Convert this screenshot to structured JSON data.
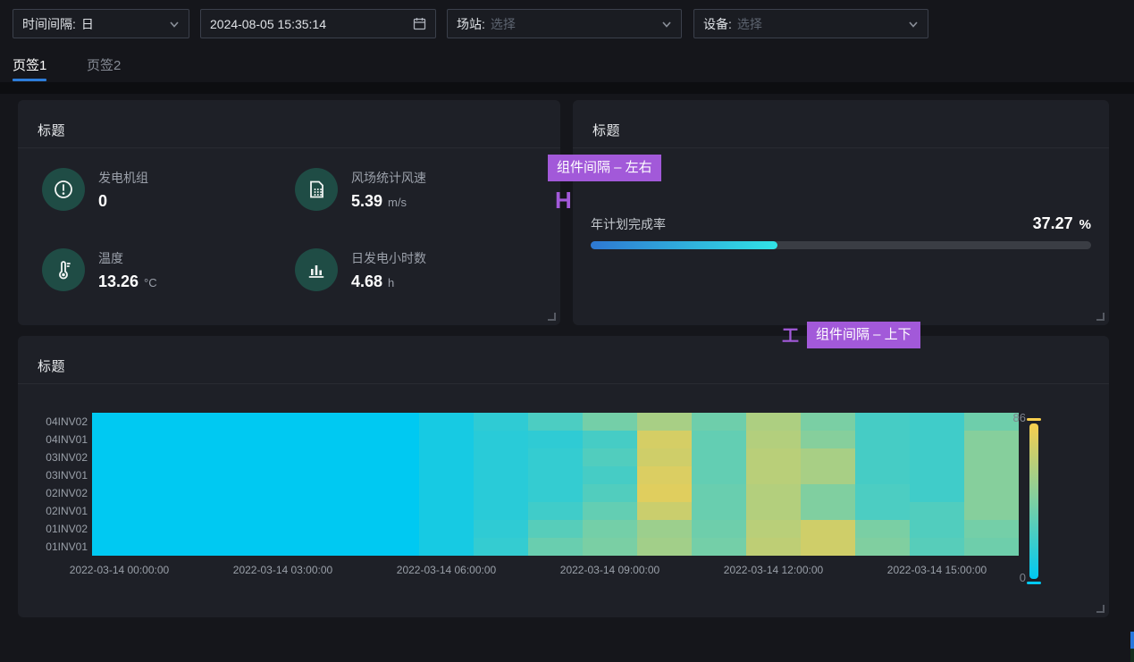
{
  "toolbar": {
    "interval": {
      "label": "时间间隔:",
      "value": "日"
    },
    "datetime": "2024-08-05 15:35:14",
    "station": {
      "label": "场站:",
      "placeholder": "选择"
    },
    "device": {
      "label": "设备:",
      "placeholder": "选择"
    }
  },
  "tabs": [
    {
      "label": "页签1",
      "active": true
    },
    {
      "label": "页签2",
      "active": false
    }
  ],
  "stats_card": {
    "title": "标题",
    "items": [
      {
        "icon": "alert-circle-icon",
        "label": "发电机组",
        "value": "0",
        "unit": ""
      },
      {
        "icon": "report-icon",
        "label": "风场统计风速",
        "value": "5.39",
        "unit": "m/s"
      },
      {
        "icon": "thermometer-icon",
        "label": "温度",
        "value": "13.26",
        "unit": "°C"
      },
      {
        "icon": "bar-chart-icon",
        "label": "日发电小时数",
        "value": "4.68",
        "unit": "h"
      }
    ]
  },
  "progress_card": {
    "title": "标题",
    "metric_label": "年计划完成率",
    "metric_value": "37.27",
    "metric_unit": "%",
    "percent": 37.27,
    "bar_gradient": [
      "#2e78d2",
      "#31e3e6"
    ]
  },
  "annotations": {
    "color": "#a259d9",
    "horizontal_gap": {
      "text": "组件间隔 – 左右",
      "marker": "H"
    },
    "vertical_gap": {
      "text": "组件间隔 – 上下",
      "marker": "工"
    }
  },
  "heatmap_card": {
    "title": "标题"
  },
  "chart_data": {
    "type": "heatmap",
    "title": "标题",
    "y_labels": [
      "04INV02",
      "04INV01",
      "03INV02",
      "03INV01",
      "02INV02",
      "02INV01",
      "01INV02",
      "01INV01"
    ],
    "x_labels": [
      "2022-03-14 00:00:00",
      "2022-03-14 03:00:00",
      "2022-03-14 06:00:00",
      "2022-03-14 09:00:00",
      "2022-03-14 12:00:00",
      "2022-03-14 15:00:00"
    ],
    "x_label_every_n_columns": 3,
    "columns": 17,
    "values": [
      [
        0,
        0,
        0,
        0,
        0,
        0,
        8,
        16,
        26,
        40,
        58,
        38,
        60,
        42,
        24,
        22,
        38
      ],
      [
        0,
        0,
        0,
        0,
        0,
        0,
        8,
        14,
        16,
        24,
        74,
        34,
        62,
        46,
        24,
        22,
        46
      ],
      [
        0,
        0,
        0,
        0,
        0,
        0,
        8,
        14,
        18,
        28,
        72,
        34,
        64,
        58,
        24,
        22,
        46
      ],
      [
        0,
        0,
        0,
        0,
        0,
        0,
        8,
        14,
        18,
        24,
        76,
        34,
        64,
        58,
        24,
        22,
        46
      ],
      [
        0,
        0,
        0,
        0,
        0,
        0,
        8,
        14,
        18,
        28,
        78,
        36,
        62,
        44,
        26,
        22,
        46
      ],
      [
        0,
        0,
        0,
        0,
        0,
        0,
        8,
        14,
        22,
        34,
        70,
        36,
        62,
        44,
        26,
        28,
        46
      ],
      [
        0,
        0,
        0,
        0,
        0,
        0,
        8,
        16,
        30,
        40,
        54,
        38,
        64,
        72,
        42,
        28,
        40
      ],
      [
        0,
        0,
        0,
        0,
        0,
        0,
        8,
        18,
        36,
        42,
        56,
        40,
        66,
        72,
        44,
        30,
        38
      ]
    ],
    "scale": {
      "min": 0,
      "max": 86,
      "colors": [
        "#00c9f2",
        "#7dcfa2",
        "#f7ce4e"
      ],
      "legend_position": "right"
    }
  }
}
